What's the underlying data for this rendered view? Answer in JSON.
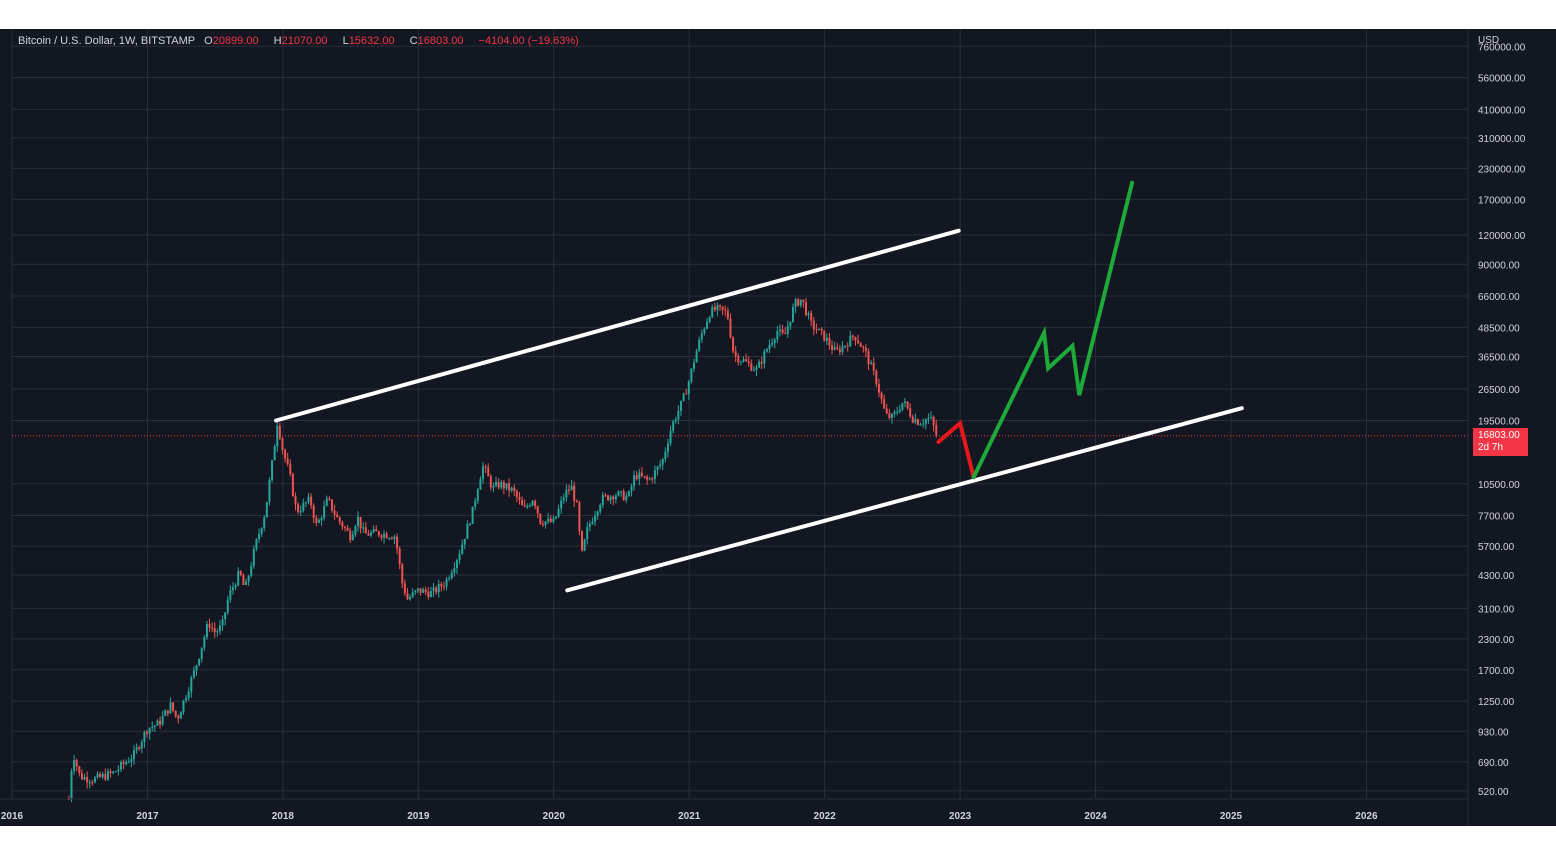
{
  "legend": {
    "symbol": "Bitcoin / U.S. Dollar, 1W, BITSTAMP",
    "o_label": "O",
    "o_value": "20899.00",
    "h_label": "H",
    "h_value": "21070.00",
    "l_label": "L",
    "l_value": "15632.00",
    "c_label": "C",
    "c_value": "16803.00",
    "change": "−4104.00 (−19.63%)"
  },
  "price_tag": {
    "price": "16803.00",
    "countdown": "2d 7h"
  },
  "colors": {
    "background": "#131722",
    "grid": "#2a2e39",
    "text": "#d1d4dc",
    "up": "#26a69a",
    "down": "#ef5350",
    "projection_down": "#e8171c",
    "projection_up": "#1ea93b",
    "channel": "#ffffff",
    "last_price": "#f23645"
  },
  "chart_data": {
    "type": "candlestick",
    "title": "Bitcoin / U.S. Dollar, 1W, BITSTAMP",
    "y_scale": "log",
    "y_unit": "USD",
    "y_ticks": [
      {
        "value": 760000,
        "label": "760000.00"
      },
      {
        "value": 560000,
        "label": "560000.00"
      },
      {
        "value": 410000,
        "label": "410000.00"
      },
      {
        "value": 310000,
        "label": "310000.00"
      },
      {
        "value": 230000,
        "label": "230000.00"
      },
      {
        "value": 170000,
        "label": "170000.00"
      },
      {
        "value": 120000,
        "label": "120000.00"
      },
      {
        "value": 90000,
        "label": "90000.00"
      },
      {
        "value": 66000,
        "label": "66000.00"
      },
      {
        "value": 48500,
        "label": "48500.00"
      },
      {
        "value": 36500,
        "label": "36500.00"
      },
      {
        "value": 26500,
        "label": "26500.00"
      },
      {
        "value": 19500,
        "label": "19500.00"
      },
      {
        "value": 10500,
        "label": "10500.00"
      },
      {
        "value": 7700,
        "label": "7700.00"
      },
      {
        "value": 5700,
        "label": "5700.00"
      },
      {
        "value": 4300,
        "label": "4300.00"
      },
      {
        "value": 3100,
        "label": "3100.00"
      },
      {
        "value": 2300,
        "label": "2300.00"
      },
      {
        "value": 1700,
        "label": "1700.00"
      },
      {
        "value": 1250,
        "label": "1250.00"
      },
      {
        "value": 930,
        "label": "930.00"
      },
      {
        "value": 690,
        "label": "690.00"
      },
      {
        "value": 520,
        "label": "520.00"
      }
    ],
    "x_ticks": [
      {
        "value": 2016,
        "label": "2016"
      },
      {
        "value": 2017,
        "label": "2017"
      },
      {
        "value": 2018,
        "label": "2018"
      },
      {
        "value": 2019,
        "label": "2019"
      },
      {
        "value": 2020,
        "label": "2020"
      },
      {
        "value": 2021,
        "label": "2021"
      },
      {
        "value": 2022,
        "label": "2022"
      },
      {
        "value": 2023,
        "label": "2023"
      },
      {
        "value": 2024,
        "label": "2024"
      },
      {
        "value": 2025,
        "label": "2025"
      },
      {
        "value": 2026,
        "label": "2026"
      }
    ],
    "x_range": [
      2016,
      2026.75
    ],
    "y_range": [
      480,
      900000
    ],
    "last_price": 16803,
    "price_path": [
      [
        2016.42,
        480
      ],
      [
        2016.45,
        760
      ],
      [
        2016.5,
        600
      ],
      [
        2016.6,
        580
      ],
      [
        2016.75,
        620
      ],
      [
        2016.9,
        740
      ],
      [
        2017.0,
        960
      ],
      [
        2017.08,
        1000
      ],
      [
        2017.17,
        1200
      ],
      [
        2017.22,
        1050
      ],
      [
        2017.35,
        1700
      ],
      [
        2017.45,
        2700
      ],
      [
        2017.5,
        2450
      ],
      [
        2017.55,
        2600
      ],
      [
        2017.6,
        3500
      ],
      [
        2017.68,
        4400
      ],
      [
        2017.72,
        3700
      ],
      [
        2017.8,
        5800
      ],
      [
        2017.87,
        8000
      ],
      [
        2017.93,
        14000
      ],
      [
        2017.96,
        19500
      ],
      [
        2018.0,
        14500
      ],
      [
        2018.05,
        11500
      ],
      [
        2018.1,
        8000
      ],
      [
        2018.2,
        9000
      ],
      [
        2018.25,
        6900
      ],
      [
        2018.33,
        9000
      ],
      [
        2018.4,
        7500
      ],
      [
        2018.5,
        6300
      ],
      [
        2018.55,
        7600
      ],
      [
        2018.6,
        6400
      ],
      [
        2018.7,
        6500
      ],
      [
        2018.83,
        6300
      ],
      [
        2018.88,
        4000
      ],
      [
        2018.92,
        3400
      ],
      [
        2019.0,
        3700
      ],
      [
        2019.1,
        3600
      ],
      [
        2019.2,
        4000
      ],
      [
        2019.3,
        5300
      ],
      [
        2019.4,
        8000
      ],
      [
        2019.45,
        11000
      ],
      [
        2019.48,
        12500
      ],
      [
        2019.55,
        10000
      ],
      [
        2019.6,
        10500
      ],
      [
        2019.7,
        9800
      ],
      [
        2019.78,
        8100
      ],
      [
        2019.85,
        9200
      ],
      [
        2019.9,
        7300
      ],
      [
        2020.0,
        7200
      ],
      [
        2020.08,
        9500
      ],
      [
        2020.13,
        10200
      ],
      [
        2020.18,
        8000
      ],
      [
        2020.2,
        5000
      ],
      [
        2020.25,
        6800
      ],
      [
        2020.35,
        9000
      ],
      [
        2020.45,
        9500
      ],
      [
        2020.55,
        9200
      ],
      [
        2020.6,
        11500
      ],
      [
        2020.7,
        10800
      ],
      [
        2020.8,
        13000
      ],
      [
        2020.87,
        18500
      ],
      [
        2020.95,
        23500
      ],
      [
        2021.0,
        29000
      ],
      [
        2021.05,
        38000
      ],
      [
        2021.1,
        47000
      ],
      [
        2021.15,
        56000
      ],
      [
        2021.2,
        58000
      ],
      [
        2021.28,
        56000
      ],
      [
        2021.33,
        37000
      ],
      [
        2021.4,
        35000
      ],
      [
        2021.5,
        32000
      ],
      [
        2021.58,
        40000
      ],
      [
        2021.65,
        47000
      ],
      [
        2021.7,
        44000
      ],
      [
        2021.78,
        61000
      ],
      [
        2021.83,
        64000
      ],
      [
        2021.9,
        50000
      ],
      [
        2022.0,
        44000
      ],
      [
        2022.08,
        38000
      ],
      [
        2022.15,
        41000
      ],
      [
        2022.22,
        45000
      ],
      [
        2022.3,
        38000
      ],
      [
        2022.38,
        29000
      ],
      [
        2022.45,
        20500
      ],
      [
        2022.5,
        20000
      ],
      [
        2022.58,
        23500
      ],
      [
        2022.65,
        20000
      ],
      [
        2022.7,
        19200
      ],
      [
        2022.78,
        20000
      ],
      [
        2022.83,
        16803
      ]
    ],
    "channel_upper": [
      [
        2017.95,
        19500
      ],
      [
        2022.99,
        125000
      ]
    ],
    "channel_lower": [
      [
        2020.1,
        3700
      ],
      [
        2025.08,
        22000
      ]
    ],
    "projection_down": [
      [
        2022.84,
        15800
      ],
      [
        2023.0,
        19000
      ],
      [
        2023.1,
        11200
      ]
    ],
    "projection_up": [
      [
        2023.1,
        11200
      ],
      [
        2023.62,
        46000
      ],
      [
        2023.65,
        32500
      ],
      [
        2023.83,
        40500
      ],
      [
        2023.88,
        25000
      ],
      [
        2024.27,
        200000
      ]
    ]
  }
}
